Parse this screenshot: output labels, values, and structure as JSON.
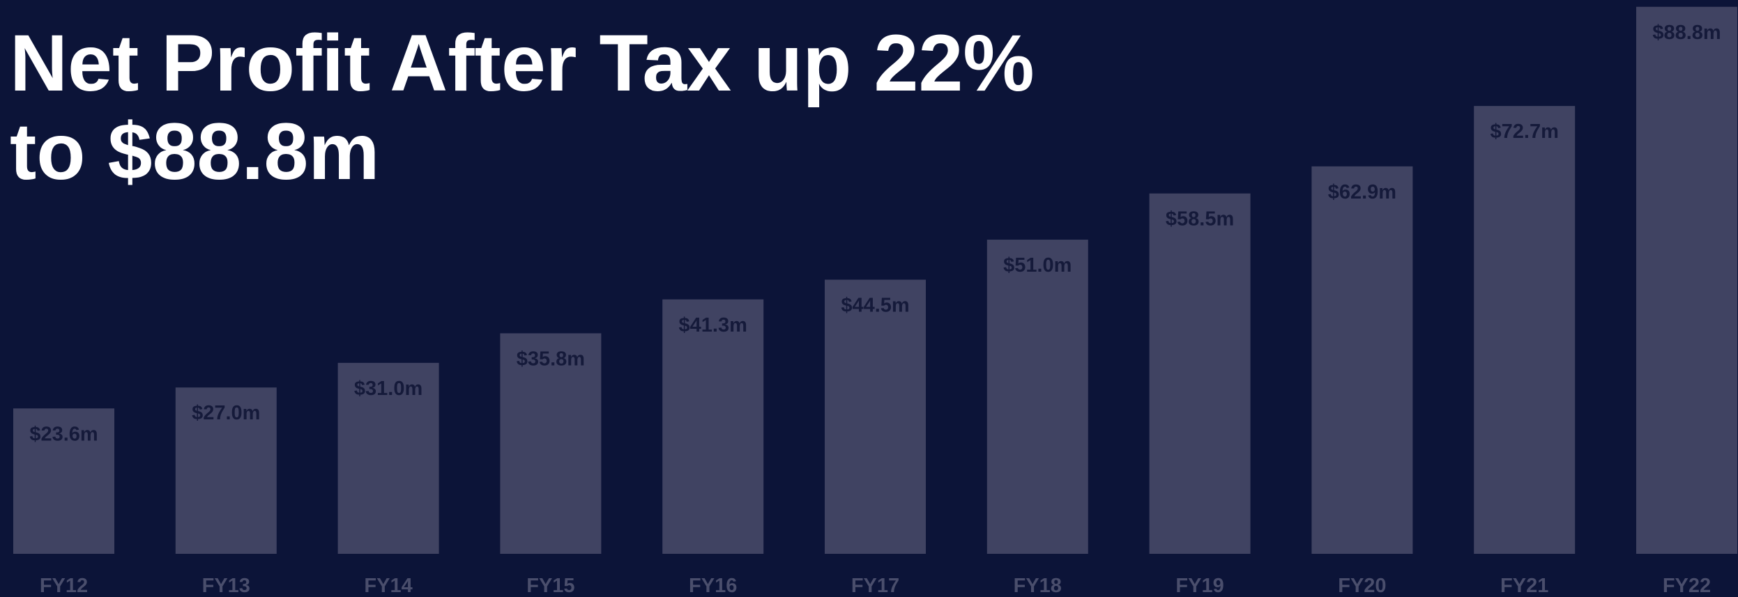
{
  "chart_data": {
    "type": "bar",
    "title": "Net Profit After Tax up 22% to $88.8m",
    "categories": [
      "FY12",
      "FY13",
      "FY14",
      "FY15",
      "FY16",
      "FY17",
      "FY18",
      "FY19",
      "FY20",
      "FY21",
      "FY22"
    ],
    "values": [
      23.6,
      27.0,
      31.0,
      35.8,
      41.3,
      44.5,
      51.0,
      58.5,
      62.9,
      72.7,
      88.8
    ],
    "value_labels": [
      "$23.6m",
      "$27.0m",
      "$31.0m",
      "$35.8m",
      "$41.3m",
      "$44.5m",
      "$51.0m",
      "$58.5m",
      "$62.9m",
      "$72.7m",
      "$88.8m"
    ],
    "color": "#404362",
    "ylim": [
      0,
      89
    ]
  }
}
